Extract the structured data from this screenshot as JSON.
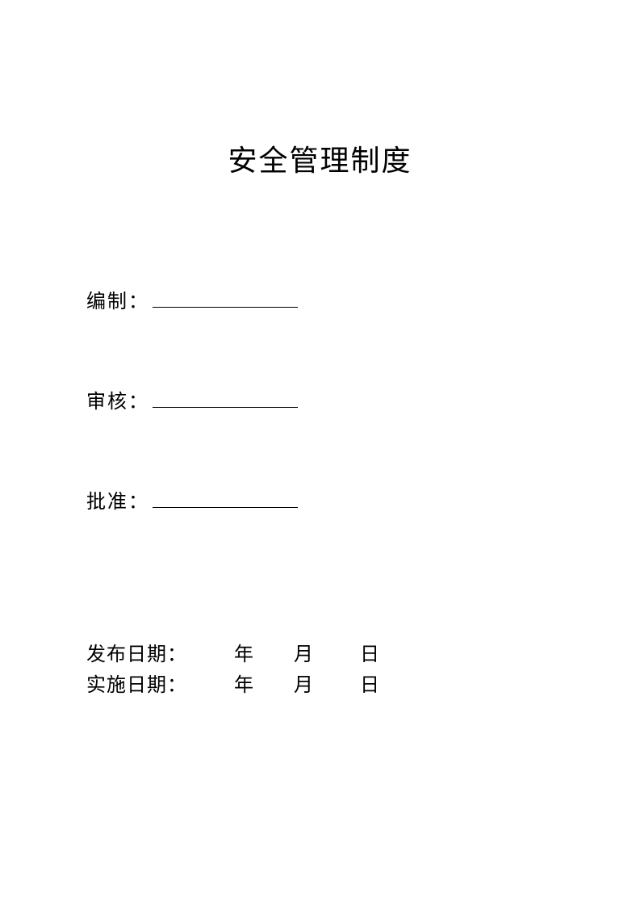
{
  "title": "安全管理制度",
  "signatures": {
    "bianzhi": {
      "label": "编制："
    },
    "shenhe": {
      "label": "审核："
    },
    "pizhun": {
      "label": "批准："
    }
  },
  "dates": {
    "fabu": {
      "label": "发布日期：",
      "year_unit": "年",
      "month_unit": "月",
      "day_unit": "日"
    },
    "shishi": {
      "label": "实施日期：",
      "year_unit": "年",
      "month_unit": "月",
      "day_unit": "日"
    }
  },
  "colors": {
    "background": "#ffffff",
    "text": "#000000",
    "line": "#000000"
  },
  "typography": {
    "title_fontsize": 36,
    "body_fontsize": 24,
    "font_family": "SimSun"
  }
}
